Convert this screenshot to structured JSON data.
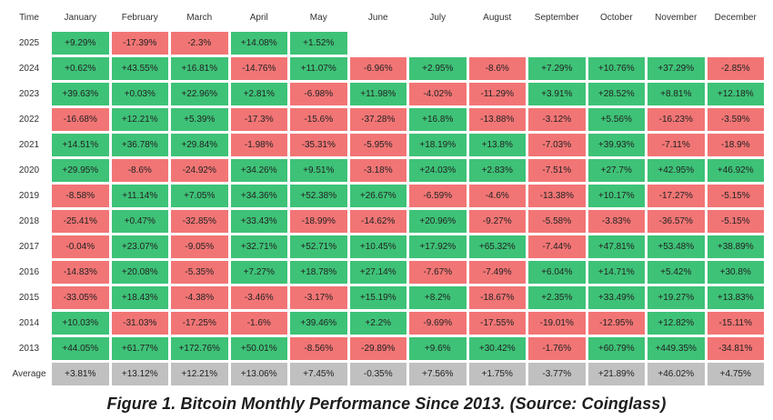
{
  "table": {
    "corner_label": "Time",
    "months": [
      "January",
      "February",
      "March",
      "April",
      "May",
      "June",
      "July",
      "August",
      "September",
      "October",
      "November",
      "December"
    ],
    "rows": [
      {
        "year": "2025",
        "values": [
          "+9.29%",
          "-17.39%",
          "-2.3%",
          "+14.08%",
          "+1.52%",
          "",
          "",
          "",
          "",
          "",
          "",
          ""
        ]
      },
      {
        "year": "2024",
        "values": [
          "+0.62%",
          "+43.55%",
          "+16.81%",
          "-14.76%",
          "+11.07%",
          "-6.96%",
          "+2.95%",
          "-8.6%",
          "+7.29%",
          "+10.76%",
          "+37.29%",
          "-2.85%"
        ]
      },
      {
        "year": "2023",
        "values": [
          "+39.63%",
          "+0.03%",
          "+22.96%",
          "+2.81%",
          "-6.98%",
          "+11.98%",
          "-4.02%",
          "-11.29%",
          "+3.91%",
          "+28.52%",
          "+8.81%",
          "+12.18%"
        ]
      },
      {
        "year": "2022",
        "values": [
          "-16.68%",
          "+12.21%",
          "+5.39%",
          "-17.3%",
          "-15.6%",
          "-37.28%",
          "+16.8%",
          "-13.88%",
          "-3.12%",
          "+5.56%",
          "-16.23%",
          "-3.59%"
        ]
      },
      {
        "year": "2021",
        "values": [
          "+14.51%",
          "+36.78%",
          "+29.84%",
          "-1.98%",
          "-35.31%",
          "-5.95%",
          "+18.19%",
          "+13.8%",
          "-7.03%",
          "+39.93%",
          "-7.11%",
          "-18.9%"
        ]
      },
      {
        "year": "2020",
        "values": [
          "+29.95%",
          "-8.6%",
          "-24.92%",
          "+34.26%",
          "+9.51%",
          "-3.18%",
          "+24.03%",
          "+2.83%",
          "-7.51%",
          "+27.7%",
          "+42.95%",
          "+46.92%"
        ]
      },
      {
        "year": "2019",
        "values": [
          "-8.58%",
          "+11.14%",
          "+7.05%",
          "+34.36%",
          "+52.38%",
          "+26.67%",
          "-6.59%",
          "-4.6%",
          "-13.38%",
          "+10.17%",
          "-17.27%",
          "-5.15%"
        ]
      },
      {
        "year": "2018",
        "values": [
          "-25.41%",
          "+0.47%",
          "-32.85%",
          "+33.43%",
          "-18.99%",
          "-14.62%",
          "+20.96%",
          "-9.27%",
          "-5.58%",
          "-3.83%",
          "-36.57%",
          "-5.15%"
        ]
      },
      {
        "year": "2017",
        "values": [
          "-0.04%",
          "+23.07%",
          "-9.05%",
          "+32.71%",
          "+52.71%",
          "+10.45%",
          "+17.92%",
          "+65.32%",
          "-7.44%",
          "+47.81%",
          "+53.48%",
          "+38.89%"
        ]
      },
      {
        "year": "2016",
        "values": [
          "-14.83%",
          "+20.08%",
          "-5.35%",
          "+7.27%",
          "+18.78%",
          "+27.14%",
          "-7.67%",
          "-7.49%",
          "+6.04%",
          "+14.71%",
          "+5.42%",
          "+30.8%"
        ]
      },
      {
        "year": "2015",
        "values": [
          "-33.05%",
          "+18.43%",
          "-4.38%",
          "-3.46%",
          "-3.17%",
          "+15.19%",
          "+8.2%",
          "-18.67%",
          "+2.35%",
          "+33.49%",
          "+19.27%",
          "+13.83%"
        ]
      },
      {
        "year": "2014",
        "values": [
          "+10.03%",
          "-31.03%",
          "-17.25%",
          "-1.6%",
          "+39.46%",
          "+2.2%",
          "-9.69%",
          "-17.55%",
          "-19.01%",
          "-12.95%",
          "+12.82%",
          "-15.11%"
        ]
      },
      {
        "year": "2013",
        "values": [
          "+44.05%",
          "+61.77%",
          "+172.76%",
          "+50.01%",
          "-8.56%",
          "-29.89%",
          "+9.6%",
          "+30.42%",
          "-1.76%",
          "+60.79%",
          "+449.35%",
          "-34.81%"
        ]
      }
    ],
    "average": {
      "label": "Average",
      "values": [
        "+3.81%",
        "+13.12%",
        "+12.21%",
        "+13.06%",
        "+7.45%",
        "-0.35%",
        "+7.56%",
        "+1.75%",
        "-3.77%",
        "+21.89%",
        "+46.02%",
        "+4.75%"
      ]
    }
  },
  "caption": "Figure 1. Bitcoin Monthly Performance Since 2013. (Source: Coinglass)",
  "colors": {
    "positive": "#3ec277",
    "negative": "#f27575",
    "average": "#c0c0c0"
  }
}
